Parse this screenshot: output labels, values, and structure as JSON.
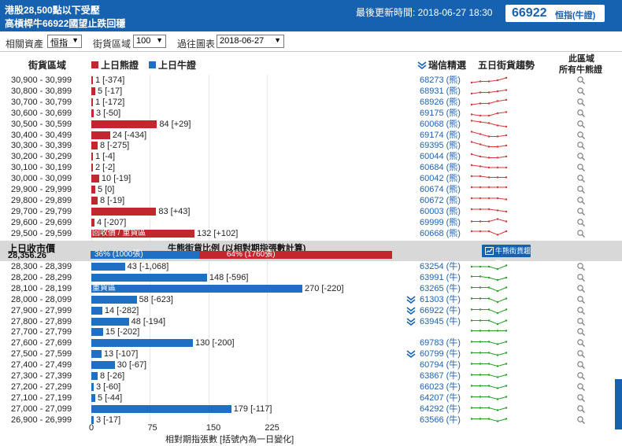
{
  "header": {
    "line1": "港股28,500點以下受壓",
    "line2": "高槓桿牛66922國望止跌回穩",
    "updated": "最後更新時間: 2018-06-27 18:30",
    "code": "66922",
    "index_label": "恒指(牛證)"
  },
  "controls": {
    "asset_label": "相關資產",
    "asset_value": "恒指",
    "zone_label": "街貨區域",
    "zone_value": "100",
    "past_label": "過往圖表",
    "past_value": "2018-06-27"
  },
  "columns": {
    "zone": "街貨區域",
    "bear_legend": "上日熊證",
    "bull_legend": "上日牛證",
    "pick": "瑞信精選",
    "trend": "五日街貨趨勢",
    "all_line1": "此區域",
    "all_line2": "所有牛熊證"
  },
  "colors": {
    "bear": "#c1272d",
    "bull": "#1f6fc5",
    "header": "#1762b0"
  },
  "bear_rows": [
    {
      "range": "30,900 - 30,999",
      "value": 1,
      "label": "1 [-374]",
      "ref": "68273 (熊)",
      "trend": [
        2,
        3,
        3,
        4,
        6
      ]
    },
    {
      "range": "30,800 - 30,899",
      "value": 5,
      "label": "5 [-17]",
      "ref": "68931 (熊)",
      "trend": [
        2,
        3,
        3,
        4,
        5
      ]
    },
    {
      "range": "30,700 - 30,799",
      "value": 1,
      "label": "1 [-172]",
      "ref": "68926 (熊)",
      "trend": [
        2,
        3,
        3,
        5,
        6
      ]
    },
    {
      "range": "30,600 - 30,699",
      "value": 3,
      "label": "3 [-50]",
      "ref": "69175 (熊)",
      "trend": [
        3,
        2,
        2,
        4,
        5
      ]
    },
    {
      "range": "30,500 - 30,599",
      "value": 84,
      "label": "84 [+29]",
      "ref": "60068 (熊)",
      "trend": [
        7,
        6,
        5,
        3,
        2
      ]
    },
    {
      "range": "30,400 - 30,499",
      "value": 24,
      "label": "24 [-434]",
      "ref": "69174 (熊)",
      "trend": [
        7,
        5,
        3,
        3,
        4
      ]
    },
    {
      "range": "30,300 - 30,399",
      "value": 8,
      "label": "8 [-275]",
      "ref": "69395 (熊)",
      "trend": [
        7,
        5,
        3,
        3,
        4
      ]
    },
    {
      "range": "30,200 - 30,299",
      "value": 1,
      "label": "1 [-4]",
      "ref": "60044 (熊)",
      "trend": [
        6,
        4,
        3,
        3,
        4
      ]
    },
    {
      "range": "30,100 - 30,199",
      "value": 2,
      "label": "2 [-2]",
      "ref": "60684 (熊)",
      "trend": [
        6,
        5,
        4,
        4,
        4
      ]
    },
    {
      "range": "30,000 - 30,099",
      "value": 10,
      "label": "10 [-19]",
      "ref": "60042 (熊)",
      "trend": [
        6,
        6,
        5,
        5,
        5
      ]
    },
    {
      "range": "29,900 - 29,999",
      "value": 5,
      "label": "5 [0]",
      "ref": "60674 (熊)",
      "trend": [
        6,
        6,
        6,
        6,
        6
      ]
    },
    {
      "range": "29,800 - 29,899",
      "value": 8,
      "label": "8 [-19]",
      "ref": "60672 (熊)",
      "trend": [
        6,
        6,
        6,
        6,
        5
      ]
    },
    {
      "range": "29,700 - 29,799",
      "value": 83,
      "label": "83 [+43]",
      "ref": "60003 (熊)",
      "trend": [
        6,
        6,
        6,
        5,
        4
      ]
    },
    {
      "range": "29,600 - 29,699",
      "value": 4,
      "label": "4 [-207]",
      "ref": "69999 (熊)",
      "trend": [
        5,
        5,
        5,
        7,
        5
      ]
    },
    {
      "range": "29,500 - 29,599",
      "value": 132,
      "label": "132 [+102]",
      "ref": "60668 (熊)",
      "trend": [
        6,
        6,
        6,
        3,
        6
      ],
      "tag": "回收價 / 重貨區"
    }
  ],
  "band": {
    "label1": "上日收市價",
    "label2": "28,356.26",
    "ratio_title": "牛熊街貨比例 (以相對期指張數計算)",
    "bull_ratio": 36,
    "bull_text": "36% (1000張)",
    "bear_ratio": 64,
    "bear_text": "64% (1760張)",
    "button": "牛熊街貨趨勢"
  },
  "bull_rows": [
    {
      "range": "28,300 - 28,399",
      "value": 43,
      "label": "43 [-1,068]",
      "ref": "63254 (牛)",
      "trend": [
        4,
        4,
        4,
        2,
        5
      ]
    },
    {
      "range": "28,200 - 28,299",
      "value": 148,
      "label": "148 [-596]",
      "ref": "63991 (牛)",
      "trend": [
        5,
        5,
        4,
        2,
        4
      ]
    },
    {
      "range": "28,100 - 28,199",
      "value": 270,
      "label": "270 [-220]",
      "ref": "63265 (牛)",
      "trend": [
        5,
        5,
        5,
        2,
        5
      ],
      "tag": "重貨區"
    },
    {
      "range": "28,000 - 28,099",
      "value": 58,
      "label": "58 [-623]",
      "ref": "61303 (牛)",
      "trend": [
        5,
        5,
        5,
        2,
        5
      ],
      "flag": true
    },
    {
      "range": "27,900 - 27,999",
      "value": 14,
      "label": "14 [-282]",
      "ref": "66922 (牛)",
      "trend": [
        5,
        5,
        5,
        2,
        5
      ],
      "flag": true
    },
    {
      "range": "27,800 - 27,899",
      "value": 48,
      "label": "48 [-194]",
      "ref": "63945 (牛)",
      "trend": [
        5,
        5,
        5,
        2,
        5
      ],
      "flag": true
    },
    {
      "range": "27,700 - 27,799",
      "value": 15,
      "label": "15 [-202]",
      "ref": "",
      "trend": [
        5,
        5,
        5,
        5,
        5
      ]
    },
    {
      "range": "27,600 - 27,699",
      "value": 130,
      "label": "130 [-200]",
      "ref": "69783 (牛)",
      "trend": [
        5,
        5,
        5,
        3,
        5
      ]
    },
    {
      "range": "27,500 - 27,599",
      "value": 13,
      "label": "13 [-107]",
      "ref": "60799 (牛)",
      "trend": [
        5,
        5,
        5,
        3,
        5
      ],
      "flag": true
    },
    {
      "range": "27,400 - 27,499",
      "value": 30,
      "label": "30 [-67]",
      "ref": "60794 (牛)",
      "trend": [
        5,
        5,
        5,
        3,
        5
      ]
    },
    {
      "range": "27,300 - 27,399",
      "value": 8,
      "label": "8 [-26]",
      "ref": "63867 (牛)",
      "trend": [
        5,
        5,
        5,
        3,
        5
      ]
    },
    {
      "range": "27,200 - 27,299",
      "value": 3,
      "label": "3 [-60]",
      "ref": "66023 (牛)",
      "trend": [
        5,
        5,
        5,
        3,
        5
      ]
    },
    {
      "range": "27,100 - 27,199",
      "value": 5,
      "label": "5 [-44]",
      "ref": "64207 (牛)",
      "trend": [
        5,
        5,
        5,
        3,
        5
      ]
    },
    {
      "range": "27,000 - 27,099",
      "value": 179,
      "label": "179 [-117]",
      "ref": "64292 (牛)",
      "trend": [
        5,
        5,
        5,
        3,
        5
      ]
    },
    {
      "range": "26,900 - 26,999",
      "value": 3,
      "label": "3 [-17]",
      "ref": "63566 (牛)",
      "trend": [
        5,
        5,
        5,
        3,
        5
      ]
    }
  ],
  "axis": {
    "ticks": [
      "0",
      "75",
      "150",
      "225"
    ],
    "tick_values": [
      0,
      75,
      150,
      225
    ],
    "title": "相對期指張數 [括號內為一日變化]"
  }
}
